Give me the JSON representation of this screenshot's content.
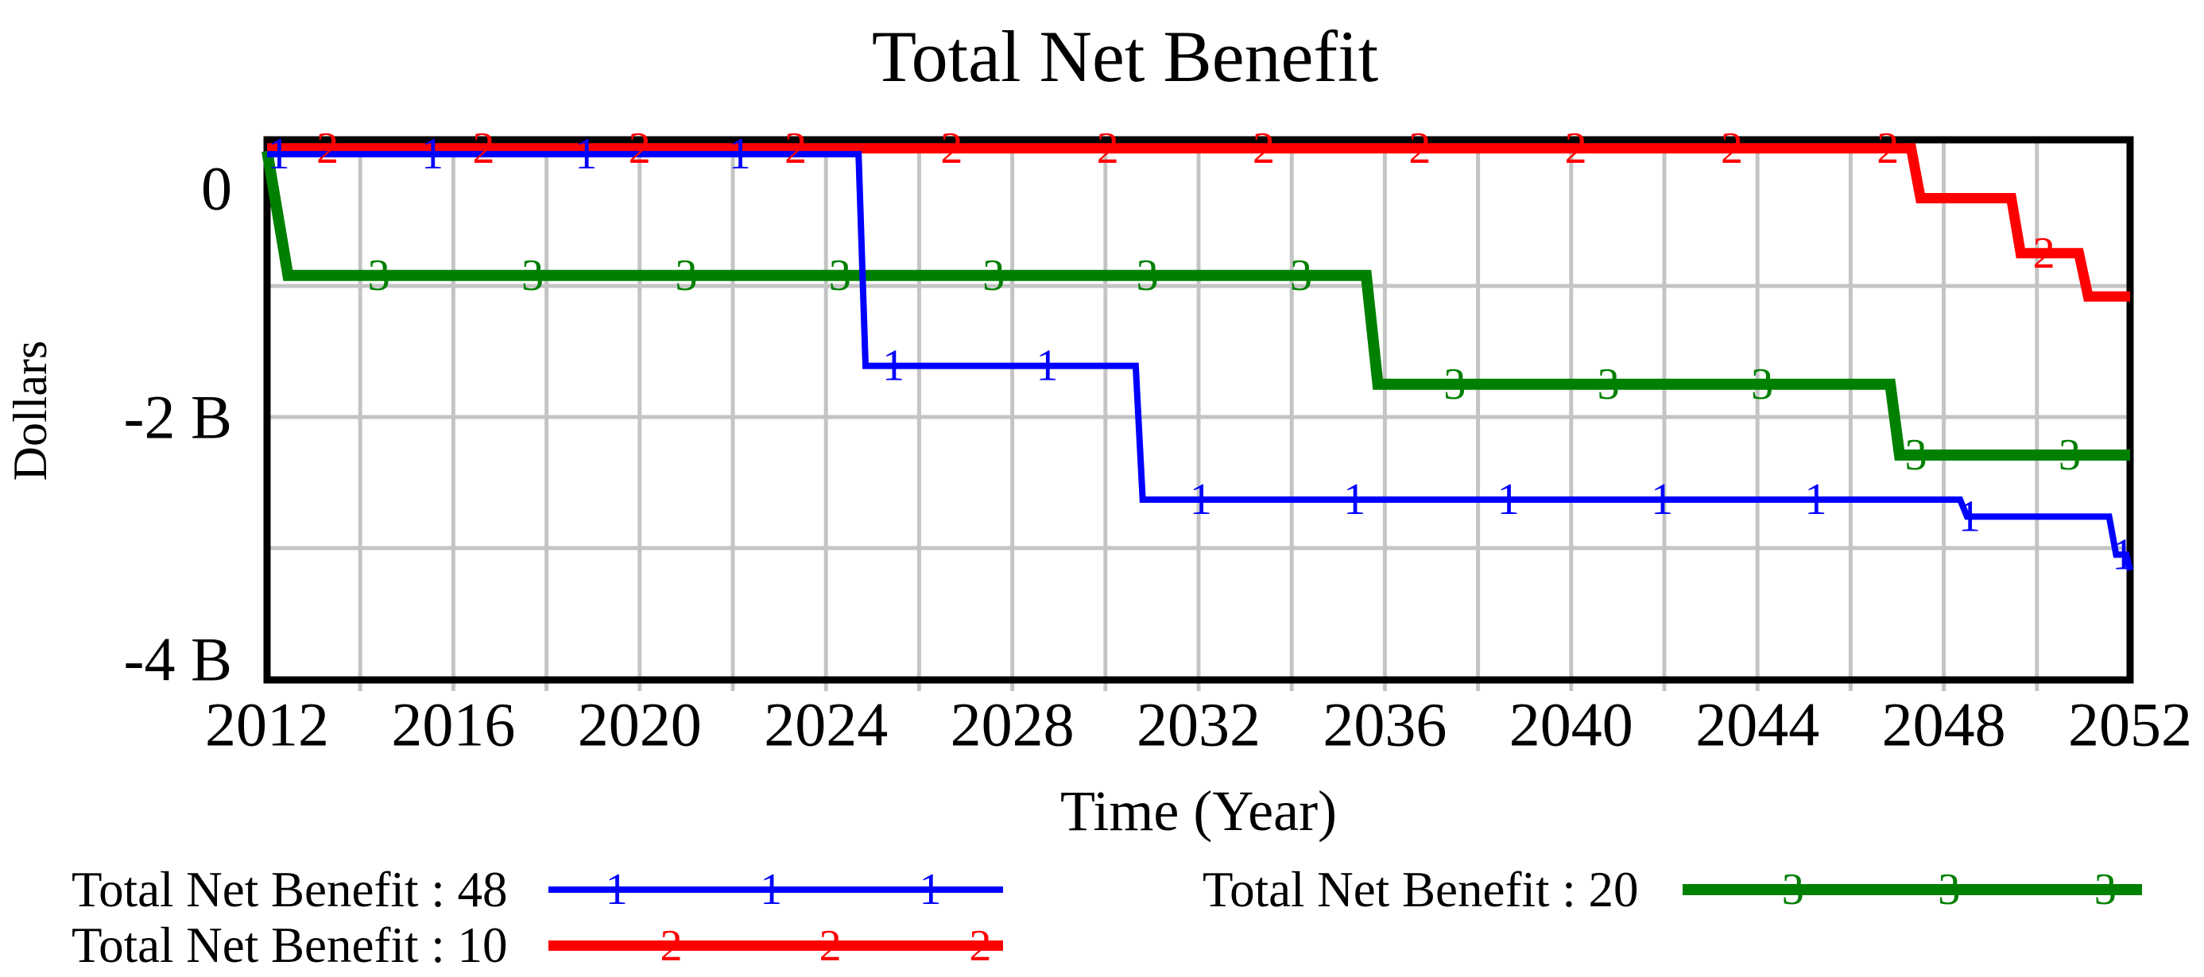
{
  "chart_data": {
    "type": "line",
    "title": "Total Net Benefit",
    "xlabel": "Time (Year)",
    "ylabel": "Dollars",
    "value_units": "billions of dollars",
    "x_axis": {
      "min": 2012,
      "max": 2052,
      "label_step": 4,
      "grid_step": 2,
      "tick_labels": [
        "2012",
        "2016",
        "2020",
        "2024",
        "2028",
        "2032",
        "2036",
        "2040",
        "2044",
        "2048",
        "2052"
      ]
    },
    "y_axis": {
      "axis_top_value": 0.12,
      "axis_bottom_value": -4.01,
      "ticks": [
        {
          "value": 0,
          "label": "0"
        },
        {
          "value": -2,
          "label": "-2 B"
        },
        {
          "value": -4,
          "label": "-4 B"
        }
      ],
      "gridlines": [
        -1,
        -2,
        -3
      ]
    },
    "series": [
      {
        "id": "1",
        "name": "Total Net Benefit : 48",
        "color": "#0000ff",
        "width": 8,
        "points": [
          [
            2012,
            0.005
          ],
          [
            2024.7,
            0.005
          ],
          [
            2024.85,
            -1.61
          ],
          [
            2030.65,
            -1.61
          ],
          [
            2030.8,
            -2.63
          ],
          [
            2048.35,
            -2.63
          ],
          [
            2048.5,
            -2.76
          ],
          [
            2051.55,
            -2.76
          ],
          [
            2051.7,
            -3.05
          ],
          [
            2051.92,
            -3.05
          ],
          [
            2052,
            -3.17
          ]
        ],
        "markers": [
          2012.25,
          2015.55,
          2018.85,
          2022.15,
          2025.45,
          2028.75,
          2032.05,
          2035.35,
          2038.65,
          2041.95,
          2045.25,
          2048.55,
          2051.85
        ]
      },
      {
        "id": "2",
        "name": "Total Net Benefit : 10",
        "color": "#ff0000",
        "width": 13,
        "points": [
          [
            2012,
            0.05
          ],
          [
            2047.3,
            0.05
          ],
          [
            2047.5,
            -0.33
          ],
          [
            2049.45,
            -0.33
          ],
          [
            2049.65,
            -0.75
          ],
          [
            2050.9,
            -0.75
          ],
          [
            2051.1,
            -1.08
          ],
          [
            2052,
            -1.08
          ]
        ],
        "markers": [
          2013.3,
          2016.65,
          2020.0,
          2023.35,
          2026.7,
          2030.05,
          2033.4,
          2036.75,
          2040.1,
          2043.45,
          2046.8,
          2050.15
        ]
      },
      {
        "id": "3",
        "name": "Total Net Benefit : 20",
        "color": "#008000",
        "width": 14,
        "points": [
          [
            2012,
            0.03
          ],
          [
            2012.45,
            -0.92
          ],
          [
            2035.6,
            -0.92
          ],
          [
            2035.85,
            -1.75
          ],
          [
            2046.85,
            -1.75
          ],
          [
            2047.05,
            -2.29
          ],
          [
            2052,
            -2.29
          ]
        ],
        "markers": [
          2014.4,
          2017.7,
          2021.0,
          2024.3,
          2027.6,
          2030.9,
          2034.2,
          2037.5,
          2040.8,
          2044.1,
          2047.4,
          2050.7
        ]
      }
    ],
    "legend": [
      {
        "label": "Total Net Benefit : 48",
        "marker": "1",
        "color": "#0000ff"
      },
      {
        "label": "Total Net Benefit : 10",
        "marker": "2",
        "color": "#ff0000"
      },
      {
        "label": "Total Net Benefit : 20",
        "marker": "3",
        "color": "#008000"
      }
    ],
    "colors": {
      "grid": "#c4c4c4",
      "axis": "#000000",
      "background": "#ffffff"
    }
  }
}
